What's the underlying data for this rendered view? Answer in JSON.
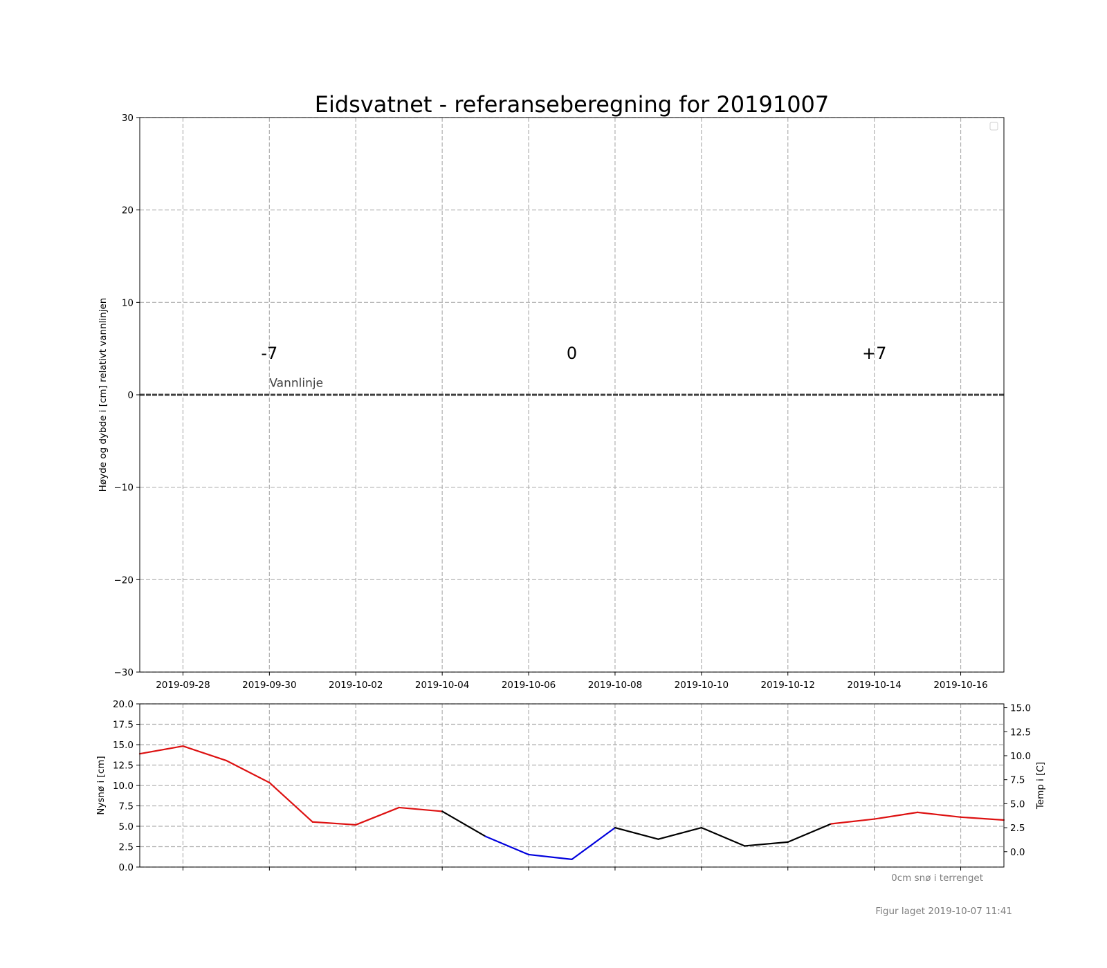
{
  "chart_data": [
    {
      "type": "line",
      "title": "Eidsvatnet - referanseberegning for 20191007",
      "ylabel": "Høyde og dybde i [cm] relativt vannlinjen",
      "xlim": [
        "2019-09-27",
        "2019-10-17"
      ],
      "ylim": [
        -30,
        30
      ],
      "yticks": [
        "30",
        "20",
        "10",
        "0",
        "−10",
        "−20",
        "−30"
      ],
      "xticks": [
        "2019-09-28",
        "2019-09-30",
        "2019-10-02",
        "2019-10-04",
        "2019-10-06",
        "2019-10-08",
        "2019-10-10",
        "2019-10-12",
        "2019-10-14",
        "2019-10-16"
      ],
      "grid": true,
      "legend_placement": "top-right",
      "annotations": {
        "minus7": {
          "text": "-7",
          "x": "2019-09-30",
          "y": 4.5
        },
        "zero": {
          "text": "0",
          "x": "2019-10-07",
          "y": 4.5
        },
        "plus7": {
          "text": "+7",
          "x": "2019-10-14",
          "y": 4.5
        },
        "waterline": {
          "text": "Vannlinje",
          "x": "2019-09-30",
          "y": 1.3
        }
      },
      "waterline_y": 0
    },
    {
      "type": "line",
      "ylabel": "Nysnø i [cm]",
      "ylim": [
        0,
        20
      ],
      "yticks": [
        "20.0",
        "17.5",
        "15.0",
        "12.5",
        "10.0",
        "7.5",
        "5.0",
        "2.5",
        "0.0"
      ],
      "y2label": "Temp i [C]",
      "y2lim": [
        -1.6,
        15.4
      ],
      "y2ticks": [
        "15.0",
        "12.5",
        "10.0",
        "7.5",
        "5.0",
        "2.5",
        "0.0"
      ],
      "grid": true,
      "series": [
        {
          "color": "#dd1111",
          "cold_color": "#0000dd",
          "mid_color": "#000000",
          "x": [
            "2019-09-27",
            "2019-09-28",
            "2019-09-29",
            "2019-09-30",
            "2019-10-01",
            "2019-10-02",
            "2019-10-03",
            "2019-10-04",
            "2019-10-05",
            "2019-10-06",
            "2019-10-07",
            "2019-10-08",
            "2019-10-09",
            "2019-10-10",
            "2019-10-11",
            "2019-10-12",
            "2019-10-13",
            "2019-10-14",
            "2019-10-15",
            "2019-10-16",
            "2019-10-17"
          ],
          "values": [
            10.2,
            11.0,
            9.5,
            7.2,
            3.1,
            2.8,
            4.6,
            4.2,
            1.6,
            -0.3,
            -0.8,
            2.5,
            1.3,
            2.5,
            0.6,
            1.0,
            2.9,
            3.4,
            4.1,
            3.6,
            3.3
          ]
        }
      ],
      "note": "0cm snø i terrenget"
    }
  ],
  "footer": "Figur laget 2019-10-07 11:41"
}
